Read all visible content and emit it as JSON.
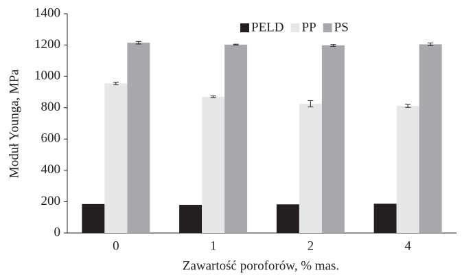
{
  "chart_data": {
    "type": "bar",
    "x_label": "Zawartość poroforów, % mas.",
    "y_label": "Moduł Younga, MPa",
    "categories": [
      "0",
      "1",
      "2",
      "4"
    ],
    "series": [
      {
        "name": "PELD",
        "color": "#231f20",
        "values": [
          185,
          180,
          183,
          187
        ]
      },
      {
        "name": "PP",
        "color": "#e6e7e8",
        "values": [
          955,
          870,
          825,
          812
        ],
        "errors": [
          8,
          5,
          20,
          10
        ]
      },
      {
        "name": "PS",
        "color": "#a7a9ac",
        "values": [
          1215,
          1203,
          1198,
          1205
        ],
        "errors": [
          8,
          3,
          6,
          8
        ]
      }
    ],
    "ylim": [
      0,
      1400
    ],
    "yticks": [
      0,
      200,
      400,
      600,
      800,
      1000,
      1200,
      1400
    ],
    "grid": false,
    "legend": "top"
  }
}
